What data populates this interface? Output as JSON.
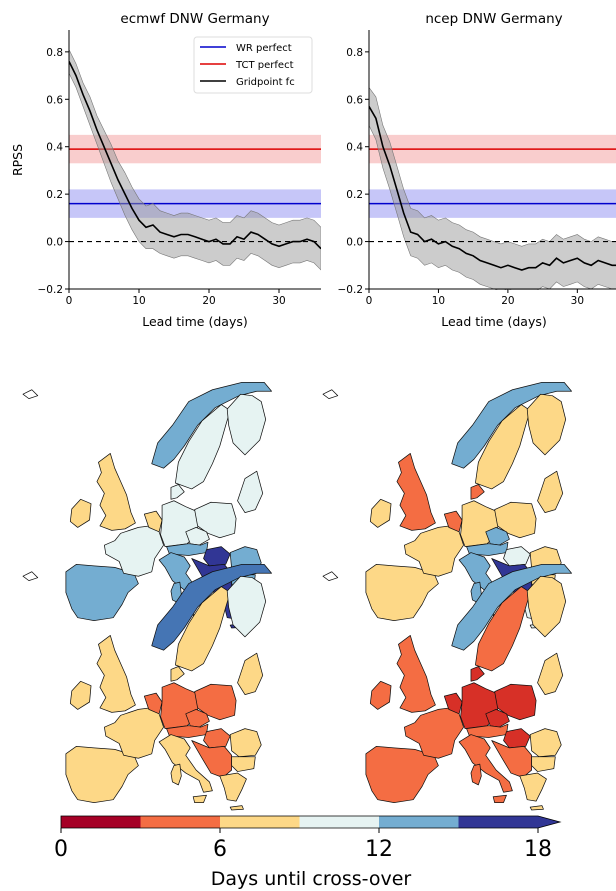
{
  "chart_data": [
    {
      "type": "line",
      "title": "ecmwf DNW Germany",
      "xlabel": "Lead time (days)",
      "ylabel": "RPSS",
      "xlim": [
        0,
        36
      ],
      "ylim": [
        -0.2,
        0.85
      ],
      "xticks": [
        "0",
        "10",
        "20",
        "30"
      ],
      "yticks": [
        "−0.2",
        "0.0",
        "0.2",
        "0.4",
        "0.6",
        "0.8"
      ],
      "zero_line": "dashed",
      "legend": "top-right",
      "legend_items": [
        "WR perfect",
        "TCT perfect",
        "Gridpoint fc"
      ],
      "bands": [
        {
          "name": "WR perfect",
          "value": 0.16,
          "low": 0.1,
          "high": 0.22,
          "color": "#0000cc",
          "fill": "#b3b3f5"
        },
        {
          "name": "TCT perfect",
          "value": 0.39,
          "low": 0.33,
          "high": 0.45,
          "color": "#dd0000",
          "fill": "#f7bcbc"
        }
      ],
      "series": [
        {
          "name": "Gridpoint fc",
          "color": "#000000",
          "x": [
            0,
            1,
            2,
            3,
            4,
            5,
            6,
            7,
            8,
            9,
            10,
            11,
            12,
            13,
            14,
            15,
            16,
            17,
            18,
            19,
            20,
            21,
            22,
            23,
            24,
            25,
            26,
            27,
            28,
            29,
            30,
            31,
            32,
            33,
            34,
            35,
            36
          ],
          "values": [
            0.76,
            0.7,
            0.62,
            0.55,
            0.47,
            0.4,
            0.33,
            0.26,
            0.2,
            0.14,
            0.09,
            0.06,
            0.07,
            0.04,
            0.03,
            0.02,
            0.03,
            0.03,
            0.02,
            0.01,
            0.0,
            0.01,
            -0.01,
            -0.01,
            0.02,
            0.01,
            0.04,
            0.03,
            0.01,
            -0.01,
            -0.02,
            -0.01,
            0.0,
            0.0,
            0.01,
            0.0,
            -0.03
          ],
          "low": [
            0.71,
            0.65,
            0.57,
            0.49,
            0.41,
            0.33,
            0.25,
            0.18,
            0.11,
            0.05,
            0.0,
            -0.03,
            -0.03,
            -0.05,
            -0.06,
            -0.07,
            -0.06,
            -0.06,
            -0.07,
            -0.08,
            -0.09,
            -0.08,
            -0.1,
            -0.1,
            -0.07,
            -0.08,
            -0.05,
            -0.06,
            -0.08,
            -0.1,
            -0.11,
            -0.1,
            -0.09,
            -0.09,
            -0.08,
            -0.09,
            -0.12
          ],
          "high": [
            0.81,
            0.75,
            0.67,
            0.61,
            0.53,
            0.47,
            0.41,
            0.34,
            0.29,
            0.23,
            0.18,
            0.15,
            0.16,
            0.13,
            0.12,
            0.11,
            0.12,
            0.12,
            0.11,
            0.1,
            0.09,
            0.1,
            0.08,
            0.08,
            0.11,
            0.1,
            0.13,
            0.12,
            0.1,
            0.08,
            0.07,
            0.08,
            0.09,
            0.09,
            0.1,
            0.09,
            0.06
          ]
        }
      ]
    },
    {
      "type": "line",
      "title": "ncep DNW Germany",
      "xlabel": "Lead time (days)",
      "ylabel": "",
      "xlim": [
        0,
        36
      ],
      "ylim": [
        -0.2,
        0.85
      ],
      "xticks": [
        "0",
        "10",
        "20",
        "30"
      ],
      "yticks": [
        "−0.2",
        "0.0",
        "0.2",
        "0.4",
        "0.6",
        "0.8"
      ],
      "zero_line": "dashed",
      "bands": [
        {
          "name": "WR perfect",
          "value": 0.16,
          "low": 0.1,
          "high": 0.22,
          "color": "#0000cc",
          "fill": "#b3b3f5"
        },
        {
          "name": "TCT perfect",
          "value": 0.39,
          "low": 0.33,
          "high": 0.45,
          "color": "#dd0000",
          "fill": "#f7bcbc"
        }
      ],
      "series": [
        {
          "name": "Gridpoint fc",
          "color": "#000000",
          "x": [
            0,
            1,
            2,
            3,
            4,
            5,
            6,
            7,
            8,
            9,
            10,
            11,
            12,
            13,
            14,
            15,
            16,
            17,
            18,
            19,
            20,
            21,
            22,
            23,
            24,
            25,
            26,
            27,
            28,
            29,
            30,
            31,
            32,
            33,
            34,
            35,
            36
          ],
          "values": [
            0.57,
            0.52,
            0.4,
            0.32,
            0.22,
            0.12,
            0.04,
            0.03,
            0.0,
            0.01,
            -0.01,
            0.0,
            -0.02,
            -0.03,
            -0.05,
            -0.06,
            -0.08,
            -0.09,
            -0.1,
            -0.11,
            -0.1,
            -0.11,
            -0.12,
            -0.11,
            -0.11,
            -0.09,
            -0.1,
            -0.07,
            -0.09,
            -0.08,
            -0.07,
            -0.09,
            -0.1,
            -0.08,
            -0.09,
            -0.1,
            -0.1
          ],
          "low": [
            0.49,
            0.43,
            0.31,
            0.22,
            0.12,
            0.02,
            -0.06,
            -0.07,
            -0.1,
            -0.09,
            -0.11,
            -0.1,
            -0.12,
            -0.13,
            -0.15,
            -0.16,
            -0.18,
            -0.19,
            -0.2,
            -0.21,
            -0.2,
            -0.21,
            -0.22,
            -0.21,
            -0.21,
            -0.19,
            -0.2,
            -0.17,
            -0.19,
            -0.18,
            -0.17,
            -0.19,
            -0.2,
            -0.18,
            -0.19,
            -0.2,
            -0.2
          ],
          "high": [
            0.65,
            0.61,
            0.49,
            0.42,
            0.32,
            0.22,
            0.14,
            0.13,
            0.1,
            0.11,
            0.09,
            0.1,
            0.08,
            0.07,
            0.05,
            0.04,
            0.02,
            0.01,
            0.0,
            -0.01,
            0.0,
            -0.01,
            -0.02,
            -0.01,
            -0.01,
            0.01,
            0.0,
            0.03,
            0.01,
            0.02,
            0.03,
            0.01,
            0.0,
            0.02,
            0.01,
            0.0,
            0.0
          ]
        }
      ]
    },
    {
      "type": "heatmap",
      "colorbar": {
        "label": "Days until cross-over",
        "ticks": [
          "0",
          "6",
          "12",
          "18"
        ],
        "range": [
          0,
          18
        ],
        "extend": "max",
        "bins": [
          {
            "from": 0,
            "to": 3,
            "color": "#a50026"
          },
          {
            "from": 3,
            "to": 6,
            "color": "#f46d43"
          },
          {
            "from": 6,
            "to": 9,
            "color": "#fdd887"
          },
          {
            "from": 9,
            "to": 12,
            "color": "#e6f3f2"
          },
          {
            "from": 12,
            "to": 15,
            "color": "#74add1"
          },
          {
            "from": 15,
            "to": 18,
            "color": "#313695"
          }
        ]
      },
      "maps": [
        {
          "panel": "top-left",
          "colors": {
            "uk": "#fdd887",
            "ireland": "#fdd887",
            "iberia": "#74add1",
            "france": "#e6f3f2",
            "benelux": "#fdd887",
            "germany": "#e6f3f2",
            "denmark": "#e6f3f2",
            "poland": "#e6f3f2",
            "czech": "#e6f3f2",
            "austria": "#74add1",
            "hungary": "#313695",
            "balkans": "#313695",
            "italy": "#74add1",
            "romania": "#74add1",
            "greece": "#313695",
            "bulgaria": "#74add1",
            "baltics": "#e6f3f2",
            "norway": "#74add1",
            "sweden": "#e6f3f2",
            "finland": "#e6f3f2"
          }
        },
        {
          "panel": "top-right",
          "colors": {
            "uk": "#f46d43",
            "ireland": "#fdd887",
            "iberia": "#fdd887",
            "france": "#fdd887",
            "benelux": "#f46d43",
            "germany": "#fdd887",
            "denmark": "#f46d43",
            "poland": "#fdd887",
            "czech": "#74add1",
            "austria": "#74add1",
            "hungary": "#e6f3f2",
            "balkans": "#313695",
            "italy": "#74add1",
            "romania": "#fdd887",
            "greece": "#e6f3f2",
            "bulgaria": "#fdd887",
            "baltics": "#fdd887",
            "norway": "#74add1",
            "sweden": "#fdd887",
            "finland": "#fdd887"
          }
        },
        {
          "panel": "bottom-left",
          "colors": {
            "uk": "#fdd887",
            "ireland": "#fdd887",
            "iberia": "#fdd887",
            "france": "#fdd887",
            "benelux": "#f46d43",
            "germany": "#f46d43",
            "denmark": "#fdd887",
            "poland": "#f46d43",
            "czech": "#f46d43",
            "austria": "#f46d43",
            "hungary": "#f46d43",
            "balkans": "#f46d43",
            "italy": "#fdd887",
            "romania": "#fdd887",
            "greece": "#fdd887",
            "bulgaria": "#fdd887",
            "baltics": "#fdd887",
            "norway": "#4575b4",
            "sweden": "#fdd887",
            "finland": "#e6f3f2"
          }
        },
        {
          "panel": "bottom-right",
          "colors": {
            "uk": "#f46d43",
            "ireland": "#f46d43",
            "iberia": "#f46d43",
            "france": "#f46d43",
            "benelux": "#d73027",
            "germany": "#d73027",
            "denmark": "#d73027",
            "poland": "#d73027",
            "czech": "#d73027",
            "austria": "#f46d43",
            "hungary": "#d73027",
            "balkans": "#f46d43",
            "italy": "#f46d43",
            "romania": "#fdd887",
            "greece": "#fdd887",
            "bulgaria": "#fdd887",
            "baltics": "#fdd887",
            "norway": "#74add1",
            "sweden": "#f46d43",
            "finland": "#fdd887"
          }
        }
      ]
    }
  ]
}
